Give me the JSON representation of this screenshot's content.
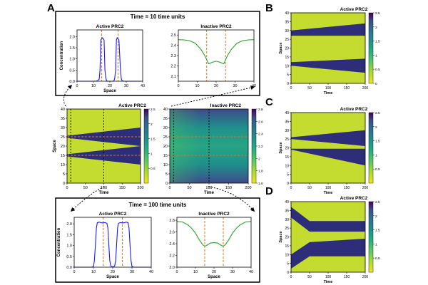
{
  "panel_letters": {
    "a": "A",
    "b": "B",
    "c": "C",
    "d": "D"
  },
  "labels": {
    "active": "Active PRC2",
    "inactive": "Inactive PRC2",
    "time10": "Time = 10 time units",
    "time100": "Time = 100 time units",
    "concentration": "Concentration",
    "space": "Space",
    "time": "Time"
  },
  "chart_data": [
    {
      "id": "a_t10_active",
      "type": "line",
      "title": "Active PRC2",
      "xlabel": "Space",
      "ylabel": "Concentration",
      "xlim": [
        0,
        40
      ],
      "ylim": [
        0,
        2.3
      ],
      "xticks": [
        0,
        10,
        20,
        30,
        40
      ],
      "yticks": [
        0.0,
        0.5,
        1.0,
        1.5,
        2.0
      ],
      "x": [
        0,
        11,
        12.5,
        13.5,
        14,
        14.5,
        15.5,
        16.5,
        17,
        17.5,
        18,
        18.5,
        19,
        22,
        22.5,
        23,
        23.5,
        24,
        24.5,
        25.5,
        26.5,
        27,
        27.5,
        28.5,
        30,
        40
      ],
      "values": [
        0,
        0,
        0.02,
        0.1,
        0.5,
        1.85,
        1.95,
        1.85,
        0.5,
        0.15,
        0.02,
        0,
        0,
        0,
        0.02,
        0.15,
        0.5,
        1.85,
        1.95,
        1.85,
        0.5,
        0.1,
        0.02,
        0,
        0,
        0
      ],
      "color": "#1a1aff",
      "markers": [
        15,
        25
      ],
      "marker_color": "#e6731a"
    },
    {
      "id": "a_t10_inactive",
      "type": "line",
      "title": "Inactive PRC2",
      "xlabel": "",
      "ylabel": "",
      "xlim": [
        0,
        40
      ],
      "ylim": [
        2.05,
        2.55
      ],
      "xticks": [
        0,
        10,
        20,
        30,
        40
      ],
      "yticks": [
        2.1,
        2.2,
        2.3,
        2.4,
        2.5
      ],
      "x": [
        0,
        3,
        6,
        9,
        12,
        14,
        15,
        16,
        18,
        20,
        22,
        24,
        25,
        26,
        28,
        31,
        34,
        37,
        40
      ],
      "values": [
        2.455,
        2.453,
        2.445,
        2.42,
        2.36,
        2.3,
        2.26,
        2.22,
        2.235,
        2.245,
        2.235,
        2.22,
        2.26,
        2.3,
        2.36,
        2.42,
        2.445,
        2.453,
        2.455
      ],
      "color": "#2ca02c",
      "markers": [
        15,
        25
      ],
      "marker_color": "#e6731a"
    },
    {
      "id": "a_heat_active",
      "type": "heatmap",
      "title": "Active PRC2",
      "xlabel": "Time",
      "ylabel": "Space",
      "xlim": [
        0,
        200
      ],
      "ylim": [
        0,
        40
      ],
      "xticks": [
        0,
        50,
        100,
        150,
        200
      ],
      "yticks": [
        0,
        5,
        10,
        15,
        20,
        25,
        30,
        35,
        40
      ],
      "colorbar": {
        "min": 0,
        "max": 2.5,
        "ticks": [
          0.5,
          1.0,
          1.5,
          2.0,
          2.5
        ]
      },
      "stripes": [
        {
          "center": 15,
          "start_halfwidth": 0.6,
          "end_halfwidth": 5
        },
        {
          "center": 25,
          "start_halfwidth": 0.6,
          "end_halfwidth": 5
        }
      ],
      "time_markers": [
        10,
        100
      ],
      "space_markers": [
        15,
        25
      ]
    },
    {
      "id": "a_heat_inactive",
      "type": "heatmap",
      "title": "Inactive PRC2",
      "xlabel": "Time",
      "ylabel": "",
      "xlim": [
        0,
        200
      ],
      "ylim": [
        0,
        40
      ],
      "xticks": [
        0,
        50,
        100,
        150,
        200
      ],
      "yticks": [
        0,
        5,
        10,
        15,
        20,
        25,
        30,
        35,
        40
      ],
      "colorbar": {
        "min": 1.6,
        "max": 2.8,
        "ticks": [
          1.6,
          1.8,
          2.0,
          2.2,
          2.4,
          2.6,
          2.8
        ]
      },
      "time_markers": [
        10,
        100
      ],
      "space_markers": [
        15,
        25
      ]
    },
    {
      "id": "a_t100_active",
      "type": "line",
      "title": "Active PRC2",
      "xlabel": "Space",
      "ylabel": "Concentration",
      "xlim": [
        0,
        40
      ],
      "ylim": [
        0,
        2.3
      ],
      "xticks": [
        0,
        10,
        20,
        30,
        40
      ],
      "yticks": [
        0.0,
        0.5,
        1.0,
        1.5,
        2.0
      ],
      "x": [
        0,
        9,
        10,
        10.5,
        11,
        11.5,
        12,
        13,
        14,
        15,
        16,
        17,
        17.5,
        18,
        18.5,
        19,
        20,
        21,
        21.5,
        22,
        22.5,
        23,
        24,
        25,
        26,
        27,
        28,
        28.5,
        29,
        29.5,
        30,
        31,
        40
      ],
      "values": [
        0,
        0,
        0.03,
        0.3,
        1.0,
        1.8,
        2.05,
        2.08,
        2.05,
        2.04,
        2.06,
        2.02,
        1.8,
        1.0,
        0.3,
        0.05,
        0.01,
        0.05,
        0.3,
        1.0,
        1.8,
        2.02,
        2.06,
        2.04,
        2.05,
        2.08,
        2.05,
        1.8,
        1.0,
        0.3,
        0.03,
        0,
        0
      ],
      "color": "#1a1aff",
      "markers": [
        15,
        25
      ],
      "marker_color": "#e6731a"
    },
    {
      "id": "a_t100_inactive",
      "type": "line",
      "title": "Inactive PRC2",
      "xlabel": "Space",
      "ylabel": "",
      "xlim": [
        0,
        40
      ],
      "ylim": [
        2.0,
        2.85
      ],
      "xticks": [
        0,
        10,
        20,
        30,
        40
      ],
      "yticks": [
        2.0,
        2.2,
        2.4,
        2.6,
        2.8
      ],
      "x": [
        0,
        3,
        6,
        8,
        10,
        12,
        14,
        15,
        16,
        18,
        20,
        22,
        24,
        25,
        26,
        28,
        30,
        32,
        34,
        37,
        40
      ],
      "values": [
        2.78,
        2.77,
        2.72,
        2.66,
        2.58,
        2.47,
        2.38,
        2.36,
        2.37,
        2.41,
        2.42,
        2.41,
        2.37,
        2.36,
        2.38,
        2.47,
        2.58,
        2.66,
        2.72,
        2.77,
        2.78
      ],
      "color": "#2ca02c",
      "markers": [
        15,
        25
      ],
      "marker_color": "#e6731a"
    },
    {
      "id": "b_heat",
      "type": "heatmap",
      "title": "Active PRC2",
      "xlabel": "Time",
      "ylabel": "Space",
      "xlim": [
        0,
        200
      ],
      "ylim": [
        0,
        40
      ],
      "xticks": [
        0,
        50,
        100,
        150,
        200
      ],
      "yticks": [
        0,
        5,
        10,
        15,
        20,
        25,
        30,
        35,
        40
      ],
      "colorbar": {
        "min": 0,
        "max": 2.5,
        "ticks": [
          0,
          0.5,
          1.0,
          1.5,
          2.0,
          2.5
        ]
      },
      "regions": [
        {
          "start": [
            10,
            12
          ],
          "end": [
            6,
            14
          ]
        },
        {
          "start": [
            27,
            30
          ],
          "end": [
            27,
            34
          ]
        }
      ]
    },
    {
      "id": "c_heat",
      "type": "heatmap",
      "title": "Active PRC2",
      "xlabel": "Time",
      "ylabel": "Space",
      "xlim": [
        0,
        200
      ],
      "ylim": [
        0,
        40
      ],
      "xticks": [
        0,
        50,
        100,
        150,
        200
      ],
      "yticks": [
        0,
        5,
        10,
        15,
        20,
        25,
        30,
        35,
        40
      ],
      "colorbar": {
        "min": 0,
        "max": 2.5,
        "ticks": [
          0.5,
          1.0,
          1.5,
          2.0,
          2.5
        ]
      },
      "regions": [
        {
          "start": [
            19,
            19.5
          ],
          "end": [
            10,
            19.5
          ]
        },
        {
          "start": [
            25,
            26
          ],
          "end": [
            21,
            30
          ]
        }
      ]
    },
    {
      "id": "d_heat",
      "type": "heatmap",
      "title": "Active PRC2",
      "xlabel": "Time",
      "ylabel": "Space",
      "xlim": [
        0,
        200
      ],
      "ylim": [
        0,
        40
      ],
      "xticks": [
        0,
        50,
        100,
        150,
        200
      ],
      "yticks": [
        0,
        5,
        10,
        15,
        20,
        25,
        30,
        35,
        40
      ],
      "colorbar": {
        "min": 0,
        "max": 2.5,
        "ticks": [
          0.5,
          1.0,
          1.5,
          2.0,
          2.5
        ]
      },
      "regions_piecewise": [
        {
          "points": [
            [
              0,
              2,
              10
            ],
            [
              50,
              9,
              17
            ],
            [
              200,
              9,
              19
            ]
          ]
        },
        {
          "points": [
            [
              0,
              31,
              37
            ],
            [
              50,
              23,
              29
            ],
            [
              200,
              23,
              29
            ]
          ]
        }
      ]
    }
  ]
}
